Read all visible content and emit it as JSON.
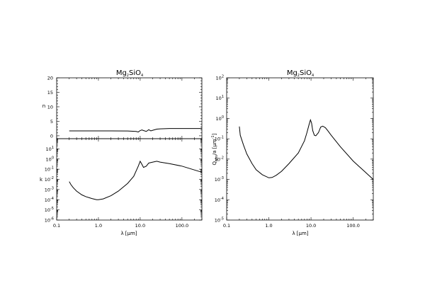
{
  "chart_data": [
    {
      "id": "n",
      "type": "line",
      "title": "Mg2SiO4",
      "title_parts": {
        "pre": "Mg",
        "sub1": "2",
        "mid": "SiO",
        "sub2": "4"
      },
      "xlabel": "",
      "ylabel": "n",
      "xscale": "log",
      "yscale": "linear",
      "xlim": [
        0.1,
        300
      ],
      "ylim": [
        -1,
        20
      ],
      "yticks": [
        "0",
        "5",
        "10",
        "15",
        "20"
      ],
      "series": [
        {
          "x": [
            0.2,
            0.5,
            1,
            2,
            5,
            8,
            9,
            10,
            11,
            12,
            14,
            16,
            18,
            20,
            25,
            30,
            50,
            100,
            300
          ],
          "y": [
            1.7,
            1.7,
            1.7,
            1.7,
            1.65,
            1.5,
            1.3,
            1.8,
            2.0,
            1.8,
            1.5,
            2.1,
            1.7,
            1.9,
            2.3,
            2.4,
            2.5,
            2.5,
            2.5
          ]
        }
      ]
    },
    {
      "id": "k",
      "type": "line",
      "title": "",
      "xlabel": "λ [µm]",
      "ylabel": "k",
      "xscale": "log",
      "yscale": "log",
      "xlim": [
        0.1,
        300
      ],
      "ylim": [
        1e-06,
        100
      ],
      "xticks": [
        "0.1",
        "1.0",
        "10.0",
        "100.0"
      ],
      "yticks": [
        {
          "base": "10",
          "exp": "1"
        },
        {
          "base": "10",
          "exp": "0"
        },
        {
          "base": "10",
          "exp": "-1"
        },
        {
          "base": "10",
          "exp": "-2"
        },
        {
          "base": "10",
          "exp": "-3"
        },
        {
          "base": "10",
          "exp": "-4"
        },
        {
          "base": "10",
          "exp": "-5"
        },
        {
          "base": "10",
          "exp": "-6"
        }
      ],
      "series": [
        {
          "x": [
            0.2,
            0.22,
            0.25,
            0.3,
            0.4,
            0.5,
            0.7,
            0.9,
            1.0,
            1.3,
            2,
            3,
            5,
            7,
            9,
            10,
            11,
            12,
            14,
            16,
            18,
            20,
            25,
            30,
            50,
            100,
            300
          ],
          "y": [
            0.006,
            0.003,
            0.0015,
            0.0007,
            0.0003,
            0.0002,
            0.00013,
            0.0001,
            0.0001,
            0.00012,
            0.00025,
            0.0007,
            0.004,
            0.02,
            0.2,
            0.6,
            0.3,
            0.15,
            0.2,
            0.4,
            0.45,
            0.5,
            0.6,
            0.5,
            0.35,
            0.2,
            0.05
          ]
        }
      ]
    },
    {
      "id": "q",
      "type": "line",
      "title": "Mg2SiO4",
      "title_parts": {
        "pre": "Mg",
        "sub1": "2",
        "mid": "SiO",
        "sub2": "4"
      },
      "xlabel": "λ [µm]",
      "ylabel": "Qabs/a [µm⁻¹]",
      "ylabel_parts": {
        "pre": "Q",
        "sub": "abs",
        "mid": "/a [µm",
        "sup": "-1",
        "post": "]"
      },
      "xscale": "log",
      "yscale": "log",
      "xlim": [
        0.1,
        300
      ],
      "ylim": [
        1e-05,
        100
      ],
      "xticks": [
        "0.1",
        "1.0",
        "10.0",
        "100.0"
      ],
      "yticks": [
        {
          "base": "10",
          "exp": "2"
        },
        {
          "base": "10",
          "exp": "1"
        },
        {
          "base": "10",
          "exp": "0"
        },
        {
          "base": "10",
          "exp": "-1"
        },
        {
          "base": "10",
          "exp": "-2"
        },
        {
          "base": "10",
          "exp": "-3"
        },
        {
          "base": "10",
          "exp": "-4"
        },
        {
          "base": "10",
          "exp": "-5"
        }
      ],
      "series": [
        {
          "x": [
            0.2,
            0.21,
            0.25,
            0.3,
            0.4,
            0.5,
            0.7,
            1.0,
            1.2,
            1.5,
            2,
            3,
            5,
            7,
            8,
            9,
            9.7,
            10.3,
            11,
            12,
            13,
            15,
            17,
            19,
            22,
            25,
            30,
            50,
            100,
            300
          ],
          "y": [
            0.4,
            0.15,
            0.05,
            0.018,
            0.006,
            0.003,
            0.0017,
            0.0012,
            0.00125,
            0.0016,
            0.0025,
            0.006,
            0.02,
            0.08,
            0.2,
            0.5,
            0.85,
            0.6,
            0.25,
            0.15,
            0.14,
            0.2,
            0.38,
            0.42,
            0.35,
            0.25,
            0.15,
            0.04,
            0.008,
            0.001
          ]
        }
      ]
    }
  ]
}
